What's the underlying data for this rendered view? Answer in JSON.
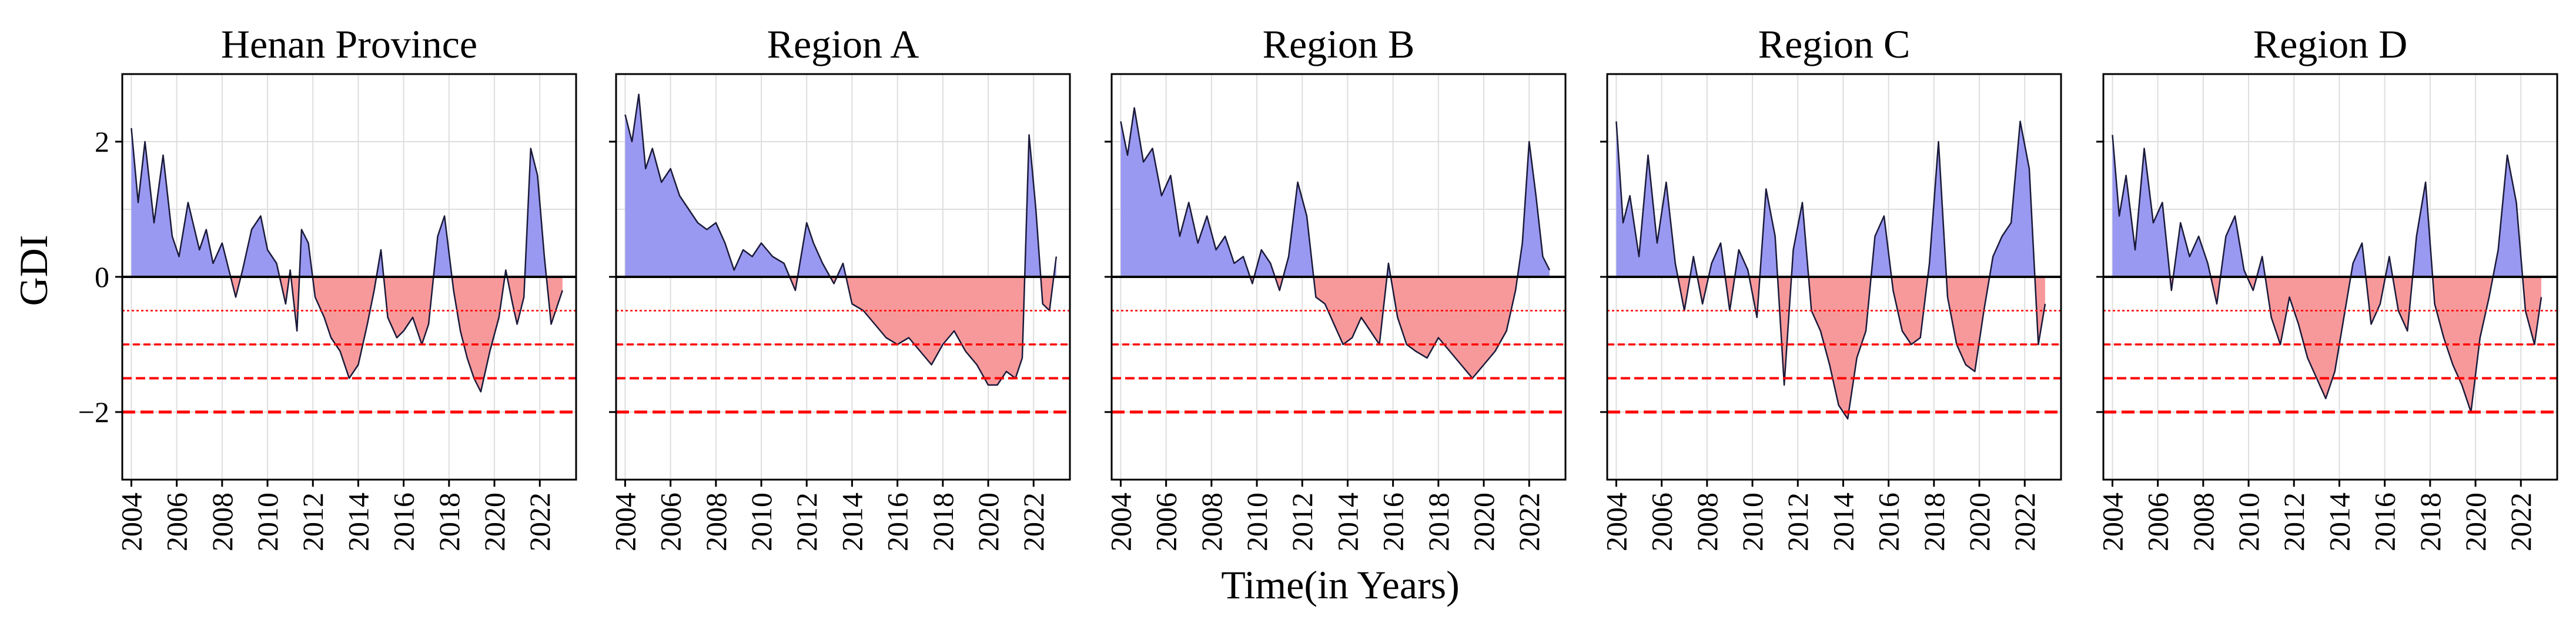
{
  "chart_data": {
    "type": "area",
    "ylabel": "GDI",
    "xlabel": "Time(in Years)",
    "ylim": [
      -3,
      3
    ],
    "xlim": [
      2003.6,
      2023.6
    ],
    "yticks": [
      2,
      0,
      -2
    ],
    "ytick_labels": [
      "2",
      "0",
      "−2"
    ],
    "xticks": [
      2004,
      2006,
      2008,
      2010,
      2012,
      2014,
      2016,
      2018,
      2020,
      2022
    ],
    "xtick_labels": [
      "2004",
      "2006",
      "2008",
      "2010",
      "2012",
      "2014",
      "2016",
      "2018",
      "2020",
      "2022"
    ],
    "grid": true,
    "thresholds": [
      -0.5,
      -1.0,
      -1.5,
      -2.0
    ],
    "colors": {
      "positive": "#9999f2",
      "negative": "#f7999b",
      "threshold": "#ff0000",
      "line": "#1a1a3a"
    },
    "panels": [
      {
        "title": "Henan Province",
        "x": [
          2004.0,
          2004.3,
          2004.6,
          2005.0,
          2005.4,
          2005.8,
          2006.1,
          2006.5,
          2007.0,
          2007.3,
          2007.6,
          2008.0,
          2008.3,
          2008.6,
          2008.9,
          2009.3,
          2009.7,
          2010.0,
          2010.4,
          2010.8,
          2011.0,
          2011.3,
          2011.5,
          2011.8,
          2012.1,
          2012.5,
          2012.8,
          2013.2,
          2013.6,
          2014.0,
          2014.4,
          2014.7,
          2015.0,
          2015.3,
          2015.7,
          2016.0,
          2016.4,
          2016.8,
          2017.1,
          2017.5,
          2017.8,
          2018.2,
          2018.5,
          2018.8,
          2019.1,
          2019.4,
          2019.8,
          2020.2,
          2020.5,
          2020.8,
          2021.0,
          2021.3,
          2021.6,
          2021.9,
          2022.2,
          2022.5,
          2022.8,
          2023.0
        ],
        "y": [
          2.2,
          1.1,
          2.0,
          0.8,
          1.8,
          0.6,
          0.3,
          1.1,
          0.4,
          0.7,
          0.2,
          0.5,
          0.1,
          -0.3,
          0.1,
          0.7,
          0.9,
          0.4,
          0.2,
          -0.4,
          0.1,
          -0.8,
          0.7,
          0.5,
          -0.3,
          -0.6,
          -0.9,
          -1.1,
          -1.5,
          -1.3,
          -0.7,
          -0.2,
          0.4,
          -0.6,
          -0.9,
          -0.8,
          -0.6,
          -1.0,
          -0.7,
          0.6,
          0.9,
          -0.2,
          -0.8,
          -1.2,
          -1.5,
          -1.7,
          -1.1,
          -0.6,
          0.1,
          -0.4,
          -0.7,
          -0.3,
          1.9,
          1.5,
          0.3,
          -0.7,
          -0.4,
          -0.2
        ]
      },
      {
        "title": "Region A",
        "x": [
          2004.0,
          2004.3,
          2004.6,
          2004.9,
          2005.2,
          2005.6,
          2006.0,
          2006.4,
          2006.8,
          2007.2,
          2007.6,
          2008.0,
          2008.4,
          2008.8,
          2009.2,
          2009.6,
          2010.0,
          2010.5,
          2011.0,
          2011.5,
          2012.0,
          2012.3,
          2012.7,
          2013.2,
          2013.6,
          2014.0,
          2014.5,
          2015.0,
          2015.5,
          2016.0,
          2016.5,
          2017.0,
          2017.5,
          2018.0,
          2018.5,
          2019.0,
          2019.5,
          2020.0,
          2020.4,
          2020.8,
          2021.2,
          2021.5,
          2021.8,
          2022.1,
          2022.4,
          2022.7,
          2023.0
        ],
        "y": [
          2.4,
          2.0,
          2.7,
          1.6,
          1.9,
          1.4,
          1.6,
          1.2,
          1.0,
          0.8,
          0.7,
          0.8,
          0.5,
          0.1,
          0.4,
          0.3,
          0.5,
          0.3,
          0.2,
          -0.2,
          0.8,
          0.5,
          0.2,
          -0.1,
          0.2,
          -0.4,
          -0.5,
          -0.7,
          -0.9,
          -1.0,
          -0.9,
          -1.1,
          -1.3,
          -1.0,
          -0.8,
          -1.1,
          -1.3,
          -1.6,
          -1.6,
          -1.4,
          -1.5,
          -1.2,
          2.1,
          1.0,
          -0.4,
          -0.5,
          0.3
        ]
      },
      {
        "title": "Region B",
        "x": [
          2004.0,
          2004.3,
          2004.6,
          2005.0,
          2005.4,
          2005.8,
          2006.2,
          2006.6,
          2007.0,
          2007.4,
          2007.8,
          2008.2,
          2008.6,
          2009.0,
          2009.4,
          2009.8,
          2010.2,
          2010.6,
          2011.0,
          2011.4,
          2011.8,
          2012.2,
          2012.6,
          2013.0,
          2013.4,
          2013.8,
          2014.2,
          2014.6,
          2015.0,
          2015.4,
          2015.8,
          2016.2,
          2016.6,
          2017.0,
          2017.5,
          2018.0,
          2018.5,
          2019.0,
          2019.5,
          2020.0,
          2020.5,
          2021.0,
          2021.4,
          2021.7,
          2022.0,
          2022.3,
          2022.6,
          2022.9
        ],
        "y": [
          2.3,
          1.8,
          2.5,
          1.7,
          1.9,
          1.2,
          1.5,
          0.6,
          1.1,
          0.5,
          0.9,
          0.4,
          0.6,
          0.2,
          0.3,
          -0.1,
          0.4,
          0.2,
          -0.2,
          0.3,
          1.4,
          0.9,
          -0.3,
          -0.4,
          -0.7,
          -1.0,
          -0.9,
          -0.6,
          -0.8,
          -1.0,
          0.2,
          -0.6,
          -1.0,
          -1.1,
          -1.2,
          -0.9,
          -1.1,
          -1.3,
          -1.5,
          -1.3,
          -1.1,
          -0.8,
          -0.2,
          0.5,
          2.0,
          1.2,
          0.3,
          0.1
        ]
      },
      {
        "title": "Region C",
        "x": [
          2004.0,
          2004.3,
          2004.6,
          2005.0,
          2005.4,
          2005.8,
          2006.2,
          2006.6,
          2007.0,
          2007.4,
          2007.8,
          2008.2,
          2008.6,
          2009.0,
          2009.4,
          2009.8,
          2010.2,
          2010.6,
          2011.0,
          2011.4,
          2011.8,
          2012.2,
          2012.6,
          2013.0,
          2013.4,
          2013.8,
          2014.2,
          2014.6,
          2015.0,
          2015.4,
          2015.8,
          2016.2,
          2016.6,
          2017.0,
          2017.4,
          2017.8,
          2018.2,
          2018.6,
          2019.0,
          2019.4,
          2019.8,
          2020.2,
          2020.6,
          2021.0,
          2021.4,
          2021.8,
          2022.2,
          2022.6,
          2022.9
        ],
        "y": [
          2.3,
          0.8,
          1.2,
          0.3,
          1.8,
          0.5,
          1.4,
          0.2,
          -0.5,
          0.3,
          -0.4,
          0.2,
          0.5,
          -0.5,
          0.4,
          0.1,
          -0.6,
          1.3,
          0.6,
          -1.6,
          0.4,
          1.1,
          -0.5,
          -0.8,
          -1.3,
          -1.9,
          -2.1,
          -1.2,
          -0.8,
          0.6,
          0.9,
          -0.2,
          -0.8,
          -1.0,
          -0.9,
          0.2,
          2.0,
          -0.3,
          -1.0,
          -1.3,
          -1.4,
          -0.5,
          0.3,
          0.6,
          0.8,
          2.3,
          1.6,
          -1.0,
          -0.4
        ]
      },
      {
        "title": "Region D",
        "x": [
          2004.0,
          2004.3,
          2004.6,
          2005.0,
          2005.4,
          2005.8,
          2006.2,
          2006.6,
          2007.0,
          2007.4,
          2007.8,
          2008.2,
          2008.6,
          2009.0,
          2009.4,
          2009.8,
          2010.2,
          2010.6,
          2011.0,
          2011.4,
          2011.8,
          2012.2,
          2012.6,
          2013.0,
          2013.4,
          2013.8,
          2014.2,
          2014.6,
          2015.0,
          2015.4,
          2015.8,
          2016.2,
          2016.6,
          2017.0,
          2017.4,
          2017.8,
          2018.2,
          2018.6,
          2019.0,
          2019.4,
          2019.8,
          2020.2,
          2020.6,
          2021.0,
          2021.4,
          2021.8,
          2022.2,
          2022.6,
          2022.9
        ],
        "y": [
          2.1,
          0.9,
          1.5,
          0.4,
          1.9,
          0.8,
          1.1,
          -0.2,
          0.8,
          0.3,
          0.6,
          0.2,
          -0.4,
          0.6,
          0.9,
          0.1,
          -0.2,
          0.3,
          -0.6,
          -1.0,
          -0.3,
          -0.7,
          -1.2,
          -1.5,
          -1.8,
          -1.4,
          -0.6,
          0.2,
          0.5,
          -0.7,
          -0.4,
          0.3,
          -0.5,
          -0.8,
          0.6,
          1.4,
          -0.4,
          -0.9,
          -1.3,
          -1.6,
          -2.0,
          -0.9,
          -0.3,
          0.4,
          1.8,
          1.1,
          -0.5,
          -1.0,
          -0.3
        ]
      }
    ]
  }
}
